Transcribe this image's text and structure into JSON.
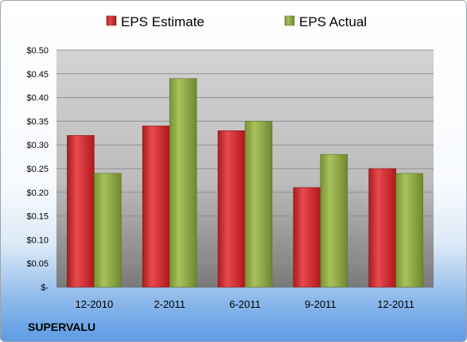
{
  "company": "SUPERVALU",
  "colors": {
    "estimate": "#c0262b",
    "actual": "#8fa948"
  },
  "chart_data": {
    "type": "bar",
    "categories": [
      "12-2010",
      "2-2011",
      "6-2011",
      "9-2011",
      "12-2011"
    ],
    "series": [
      {
        "name": "EPS Estimate",
        "values": [
          0.32,
          0.34,
          0.33,
          0.21,
          0.25
        ]
      },
      {
        "name": "EPS Actual",
        "values": [
          0.24,
          0.44,
          0.35,
          0.28,
          0.24
        ]
      }
    ],
    "yticks": [
      "$-",
      "$0.05",
      "$0.10",
      "$0.15",
      "$0.20",
      "$0.25",
      "$0.30",
      "$0.35",
      "$0.40",
      "$0.45",
      "$0.50"
    ],
    "ylim": [
      0,
      0.5
    ],
    "grid": true,
    "legend_position": "top"
  }
}
